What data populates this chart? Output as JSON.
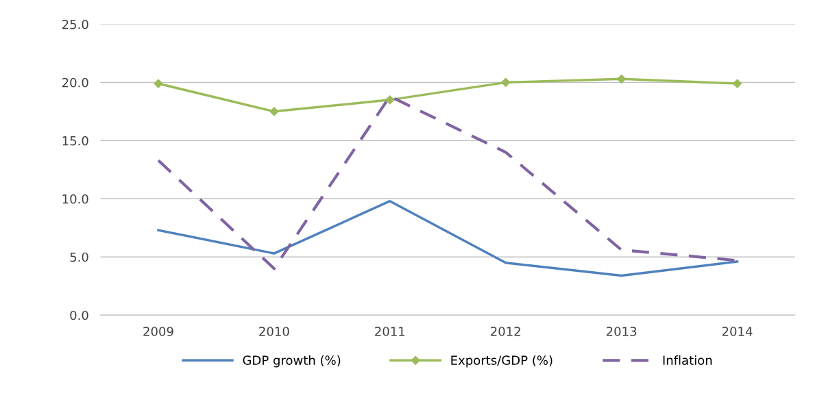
{
  "chart_data": {
    "type": "line",
    "categories": [
      "2009",
      "2010",
      "2011",
      "2012",
      "2013",
      "2014"
    ],
    "series": [
      {
        "name": "GDP growth (%)",
        "color": "#4f81bd",
        "values": [
          7.3,
          5.3,
          9.8,
          4.5,
          3.4,
          4.6
        ],
        "marker": "none",
        "line_style": "solid"
      },
      {
        "name": "Exports/GDP (%)",
        "color": "#9bbb59",
        "values": [
          19.9,
          17.5,
          18.5,
          20.0,
          20.3,
          19.9
        ],
        "marker": "diamond",
        "line_style": "solid"
      },
      {
        "name": "Inflation",
        "color": "#8064a2",
        "values": [
          13.3,
          4.0,
          18.8,
          14.0,
          5.6,
          4.7
        ],
        "marker": "none",
        "line_style": "dashed"
      }
    ],
    "ylim": [
      0,
      25
    ],
    "yticks": [
      {
        "value": 0,
        "label": "0.0"
      },
      {
        "value": 5,
        "label": "5.0"
      },
      {
        "value": 10,
        "label": "10.0"
      },
      {
        "value": 15,
        "label": "15.0"
      },
      {
        "value": 20,
        "label": "20.0"
      },
      {
        "value": 25,
        "label": "25.0"
      }
    ],
    "grid": "y",
    "legend": "bottom"
  }
}
